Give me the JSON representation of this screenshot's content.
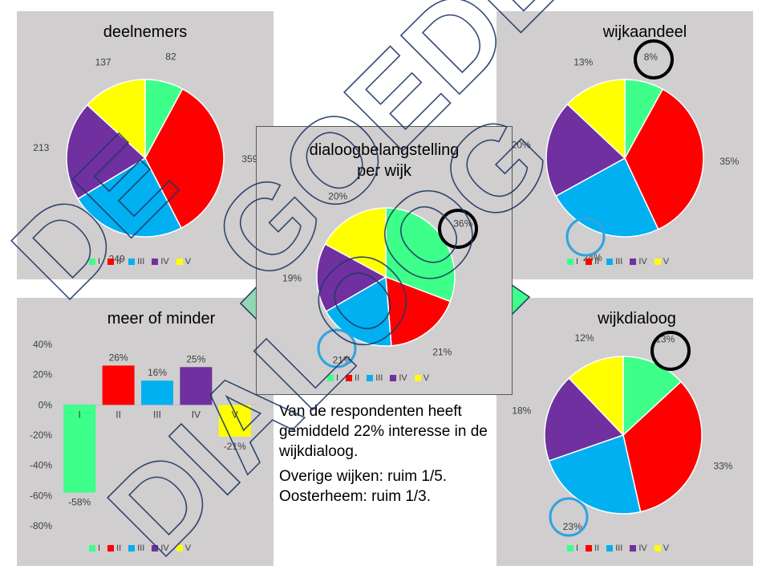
{
  "colors": [
    "#3dff8a",
    "#ff0000",
    "#00b0f0",
    "#7030a0",
    "#ffff00"
  ],
  "legend_labels": [
    "I",
    "II",
    "III",
    "IV",
    "V"
  ],
  "note": {
    "line1": "Van de respondenten heeft gemiddeld 22% interesse in de wijkdialoog.",
    "line2": "Overige wijken: ruim 1/5.",
    "line3": "Oosterheem: ruim 1/3."
  },
  "chart_data": [
    {
      "id": "deelnemers",
      "type": "pie",
      "title": "deelnemers",
      "categories": [
        "I",
        "II",
        "III",
        "IV",
        "V"
      ],
      "values": [
        82,
        359,
        249,
        213,
        137
      ],
      "labels": [
        "82",
        "359",
        "249",
        "213",
        "137"
      ]
    },
    {
      "id": "wijkaandeel",
      "type": "pie",
      "title": "wijkaandeel",
      "categories": [
        "I",
        "II",
        "III",
        "IV",
        "V"
      ],
      "values": [
        8,
        35,
        24,
        20,
        13
      ],
      "labels": [
        "8%",
        "35%",
        "24%",
        "20%",
        "13%"
      ]
    },
    {
      "id": "dialoog",
      "type": "pie",
      "title": "dialoogbelangstelling per wijk",
      "title_lines": [
        "dialoogbelangstelling",
        "per wijk"
      ],
      "categories": [
        "I",
        "II",
        "III",
        "IV",
        "V"
      ],
      "values": [
        36,
        21,
        21,
        19,
        20
      ],
      "labels": [
        "36%",
        "21%",
        "21%",
        "19%",
        "20%"
      ]
    },
    {
      "id": "wijkdialoog",
      "type": "pie",
      "title": "wijkdialoog",
      "categories": [
        "I",
        "II",
        "III",
        "IV",
        "V"
      ],
      "values": [
        13,
        33,
        23,
        18,
        12
      ],
      "labels": [
        "13%",
        "33%",
        "23%",
        "18%",
        "12%"
      ]
    },
    {
      "id": "meerminder",
      "type": "bar",
      "title": "meer of minder",
      "categories": [
        "I",
        "II",
        "III",
        "IV",
        "V"
      ],
      "values": [
        -58,
        26,
        16,
        25,
        -21
      ],
      "labels": [
        "-58%",
        "26%",
        "16%",
        "25%",
        "-21%"
      ],
      "ylim": [
        -80,
        40
      ],
      "yticks": [
        "40%",
        "20%",
        "0%",
        "-20%",
        "-40%",
        "-60%",
        "-80%"
      ]
    }
  ],
  "watermark": "DE GOEDE DIALOOG"
}
